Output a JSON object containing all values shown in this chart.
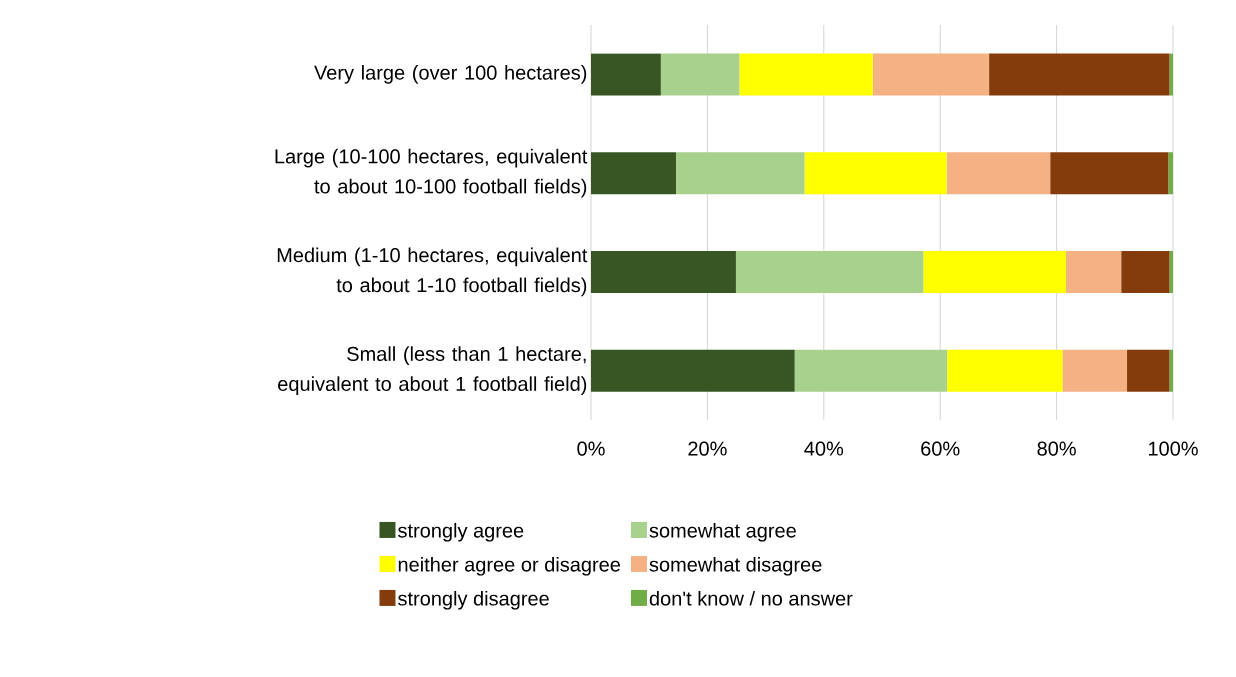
{
  "chart_data": {
    "type": "bar",
    "orientation": "horizontal",
    "stacked": true,
    "categories": [
      "Very large (over 100 hectares)",
      "Large (10-100 hectares, equivalent to about 10-100 football fields)",
      "Medium (1-10 hectares, equivalent to about 1-10 football fields)",
      "Small (less than 1 hectare, equivalent to about 1 football field)"
    ],
    "series": [
      {
        "name": "strongly agree",
        "color": "#375623",
        "values": [
          12.0,
          14.6,
          24.9,
          35.0
        ]
      },
      {
        "name": "somewhat agree",
        "color": "#a9d18e",
        "values": [
          13.5,
          22.1,
          32.2,
          26.2
        ]
      },
      {
        "name": "neither agree or disagree",
        "color": "#ffff00",
        "values": [
          22.9,
          24.4,
          24.5,
          19.8
        ]
      },
      {
        "name": "somewhat disagree",
        "color": "#f4b183",
        "values": [
          20.0,
          17.8,
          9.5,
          11.1
        ]
      },
      {
        "name": "strongly disagree",
        "color": "#843c0c",
        "values": [
          31.0,
          20.3,
          8.3,
          7.3
        ]
      },
      {
        "name": "don't know / no answer",
        "color": "#70ad47",
        "values": [
          0.6,
          0.8,
          0.6,
          0.6
        ]
      }
    ],
    "xlim": [
      0,
      100
    ],
    "xticks": [
      {
        "value": 0,
        "label": "0%"
      },
      {
        "value": 20,
        "label": "20%"
      },
      {
        "value": 40,
        "label": "40%"
      },
      {
        "value": 60,
        "label": "60%"
      },
      {
        "value": 80,
        "label": "80%"
      },
      {
        "value": 100,
        "label": "100%"
      }
    ],
    "grid": "x",
    "legend": "bottom"
  }
}
